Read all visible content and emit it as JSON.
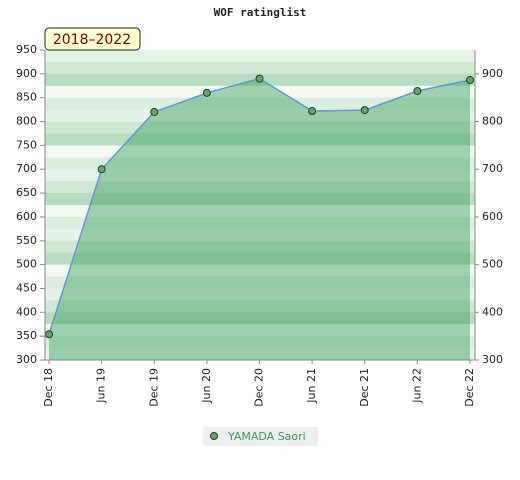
{
  "chart_data": {
    "type": "area-line",
    "title": "WOF ratinglist",
    "annotation": "2018–2022",
    "categories": [
      "Dec 18",
      "Jun 19",
      "Dec 19",
      "Jun 20",
      "Dec 20",
      "Jun 21",
      "Dec 21",
      "Jun 22",
      "Dec 22"
    ],
    "series": [
      {
        "name": "YAMADA Saori",
        "color": "#5b9bd5",
        "values": [
          354,
          700,
          820,
          860,
          890,
          822,
          824,
          864,
          887
        ]
      }
    ],
    "ylim": [
      300,
      950
    ],
    "yticks": [
      300,
      350,
      400,
      450,
      500,
      550,
      600,
      650,
      700,
      750,
      800,
      850,
      900,
      950
    ],
    "y2lim": [
      300,
      950
    ],
    "y2ticks": [
      300,
      400,
      500,
      600,
      700,
      800,
      900
    ],
    "legend": "bottom"
  }
}
